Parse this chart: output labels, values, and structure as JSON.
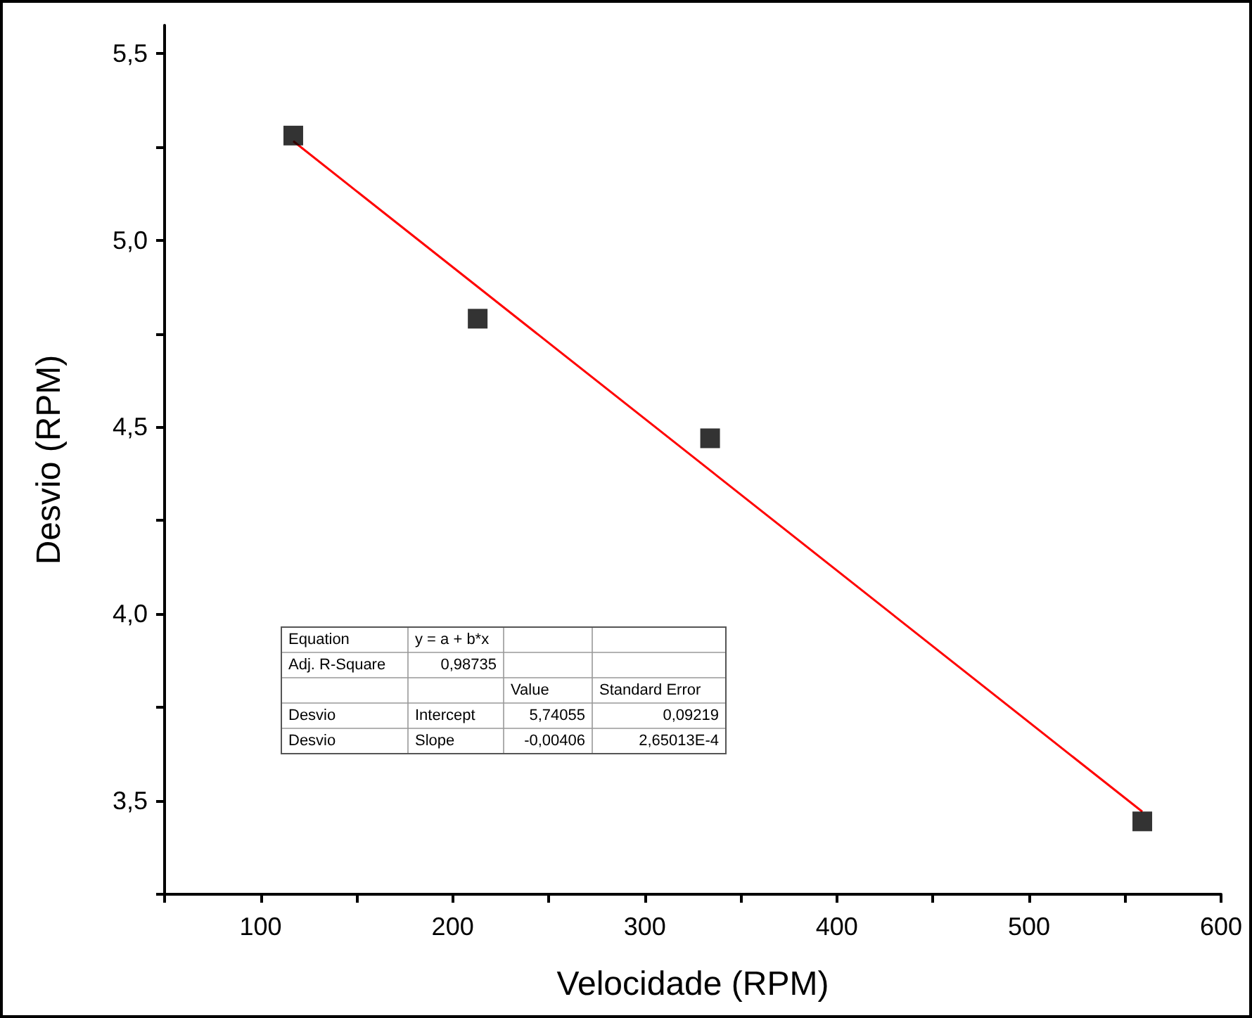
{
  "chart_data": {
    "type": "scatter",
    "xlabel": "Velocidade (RPM)",
    "ylabel": "Desvio (RPM)",
    "xlim": [
      50,
      600
    ],
    "xticks": [
      {
        "value": 50,
        "label": null
      },
      100,
      {
        "value": 150,
        "label": null
      },
      200,
      {
        "value": 250,
        "label": null
      },
      300,
      {
        "value": 350,
        "label": null
      },
      400,
      {
        "value": 450,
        "label": null
      },
      500,
      {
        "value": 550,
        "label": null
      },
      600
    ],
    "ylim": [
      3.25,
      5.575
    ],
    "yticks": [
      {
        "value": 3.25,
        "label": null
      },
      {
        "value": 3.5,
        "label": "3,5"
      },
      {
        "value": 3.75,
        "label": null
      },
      {
        "value": 4.0,
        "label": "4,0"
      },
      {
        "value": 4.25,
        "label": null
      },
      {
        "value": 4.5,
        "label": "4,5"
      },
      {
        "value": 4.75,
        "label": null
      },
      {
        "value": 5.0,
        "label": "5,0"
      },
      {
        "value": 5.25,
        "label": null
      },
      {
        "value": 5.5,
        "label": "5,5"
      }
    ],
    "grid": false,
    "series": [
      {
        "marker": "square",
        "color": "#000000",
        "x": [
          117,
          213,
          334,
          559
        ],
        "values": [
          5.28,
          4.79,
          4.47,
          3.445
        ]
      },
      {
        "type": "line",
        "marker": "none",
        "color": "#ff0000",
        "x": [
          117,
          559
        ],
        "values": [
          5.265,
          3.471
        ]
      }
    ],
    "annotations": [
      "Equation",
      "y = a + b*x",
      null,
      null,
      "Adj. R-Square",
      "0,98735",
      null,
      null,
      null,
      null,
      "Value",
      "Standard Error",
      "Desvio",
      "Intercept",
      "5,74055",
      "0,09219",
      "Desvio",
      "Slope",
      "-0,00406",
      "2,65013E-4"
    ]
  }
}
